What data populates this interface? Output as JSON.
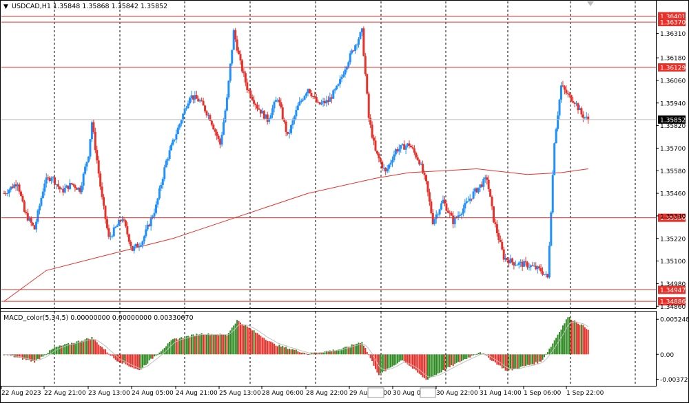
{
  "header": {
    "symbol": "USDCAD,H1",
    "ohlc": "1.35848 1.35868 1.35842 1.35852"
  },
  "indicator": {
    "label": "MACD_color(5,34,5) 0.00000000 0.00000000 0.00330670"
  },
  "colors": {
    "bull": "#1e90ff",
    "bear": "#e8302a",
    "ma": "#e8302a",
    "hline": "#e8302a",
    "grid": "#000000",
    "macd_up": "#2e8b22",
    "macd_down": "#e8302a",
    "signal": "#c0c0c0"
  },
  "price_axis": {
    "ticks": [
      "1.36310",
      "1.36180",
      "1.36060",
      "1.35940",
      "1.35820",
      "1.35700",
      "1.35580",
      "1.35460",
      "1.35340",
      "1.35220",
      "1.35100",
      "1.34980",
      "1.34860"
    ],
    "levels": [
      "1.36401",
      "1.36370",
      "1.36129",
      "1.35330",
      "1.34947",
      "1.34886"
    ],
    "current": "1.35852"
  },
  "macd_axis": {
    "ticks": [
      "0.0052488",
      "0.00",
      "-0.0037204"
    ]
  },
  "time_axis": {
    "labels": [
      "22 Aug 2023",
      "22 Aug 21:00",
      "23 Aug 13:00",
      "24 Aug 05:00",
      "24 Aug 21:00",
      "25 Aug 13:00",
      "28 Aug 06:00",
      "28 Aug 22:00",
      "29 Aug 14:00",
      "30 Aug 06:00",
      "30 Aug 22:00",
      "31 Aug 14:00",
      "1 Sep 06:00",
      "1 Sep 22:00"
    ]
  },
  "chart_data": {
    "type": "candlestick",
    "symbol": "USDCAD",
    "timeframe": "H1",
    "ylim": [
      1.3485,
      1.3648
    ],
    "hlines": [
      1.36401,
      1.3637,
      1.36129,
      1.3533,
      1.34947,
      1.34886
    ],
    "current_price": 1.35852,
    "ma_points": [
      [
        0,
        1.34886
      ],
      [
        25,
        1.3505
      ],
      [
        60,
        1.3513
      ],
      [
        100,
        1.3522
      ],
      [
        140,
        1.3534
      ],
      [
        180,
        1.3546
      ],
      [
        220,
        1.3554
      ],
      [
        240,
        1.3557
      ],
      [
        280,
        1.3559
      ],
      [
        310,
        1.3556
      ],
      [
        330,
        1.3557
      ],
      [
        346,
        1.3559
      ]
    ],
    "price_path": [
      [
        0,
        1.3546
      ],
      [
        8,
        1.3552
      ],
      [
        12,
        1.3536
      ],
      [
        18,
        1.3527
      ],
      [
        24,
        1.3552
      ],
      [
        28,
        1.3555
      ],
      [
        34,
        1.3547
      ],
      [
        40,
        1.3551
      ],
      [
        45,
        1.3548
      ],
      [
        50,
        1.3567
      ],
      [
        52,
        1.3584
      ],
      [
        58,
        1.3543
      ],
      [
        62,
        1.3522
      ],
      [
        70,
        1.3533
      ],
      [
        76,
        1.3516
      ],
      [
        82,
        1.3521
      ],
      [
        90,
        1.3539
      ],
      [
        96,
        1.3563
      ],
      [
        104,
        1.3583
      ],
      [
        110,
        1.3598
      ],
      [
        116,
        1.3595
      ],
      [
        122,
        1.3586
      ],
      [
        128,
        1.3572
      ],
      [
        132,
        1.3596
      ],
      [
        136,
        1.3632
      ],
      [
        140,
        1.3615
      ],
      [
        144,
        1.3602
      ],
      [
        150,
        1.3592
      ],
      [
        156,
        1.3585
      ],
      [
        162,
        1.3597
      ],
      [
        168,
        1.3576
      ],
      [
        174,
        1.3592
      ],
      [
        180,
        1.3602
      ],
      [
        186,
        1.3593
      ],
      [
        192,
        1.3595
      ],
      [
        198,
        1.3603
      ],
      [
        202,
        1.3613
      ],
      [
        208,
        1.3625
      ],
      [
        212,
        1.3632
      ],
      [
        216,
        1.3586
      ],
      [
        220,
        1.3568
      ],
      [
        226,
        1.3557
      ],
      [
        232,
        1.3569
      ],
      [
        240,
        1.3572
      ],
      [
        246,
        1.3563
      ],
      [
        250,
        1.3551
      ],
      [
        254,
        1.3531
      ],
      [
        260,
        1.3542
      ],
      [
        266,
        1.3531
      ],
      [
        272,
        1.3538
      ],
      [
        278,
        1.3546
      ],
      [
        286,
        1.3554
      ],
      [
        290,
        1.3532
      ],
      [
        296,
        1.3512
      ],
      [
        302,
        1.3509
      ],
      [
        310,
        1.3508
      ],
      [
        318,
        1.3505
      ],
      [
        322,
        1.3501
      ],
      [
        326,
        1.3574
      ],
      [
        330,
        1.3603
      ],
      [
        334,
        1.3598
      ],
      [
        338,
        1.3595
      ],
      [
        342,
        1.3588
      ],
      [
        346,
        1.3585
      ]
    ]
  },
  "macd_data": {
    "ylim": [
      -0.0045,
      0.0062
    ],
    "hist_path": [
      [
        0,
        0.0
      ],
      [
        18,
        -0.0011
      ],
      [
        30,
        0.001
      ],
      [
        52,
        0.0025
      ],
      [
        66,
        -0.0008
      ],
      [
        80,
        -0.0024
      ],
      [
        100,
        0.0022
      ],
      [
        116,
        0.0031
      ],
      [
        132,
        0.0029
      ],
      [
        138,
        0.0051
      ],
      [
        160,
        0.0015
      ],
      [
        180,
        0.0001
      ],
      [
        200,
        0.0008
      ],
      [
        212,
        0.0019
      ],
      [
        222,
        -0.0031
      ],
      [
        236,
        -0.0008
      ],
      [
        250,
        -0.0038
      ],
      [
        270,
        -0.0011
      ],
      [
        282,
        0.0004
      ],
      [
        298,
        -0.0025
      ],
      [
        318,
        -0.0011
      ],
      [
        324,
        0.0012
      ],
      [
        334,
        0.0056
      ],
      [
        346,
        0.0038
      ]
    ]
  }
}
